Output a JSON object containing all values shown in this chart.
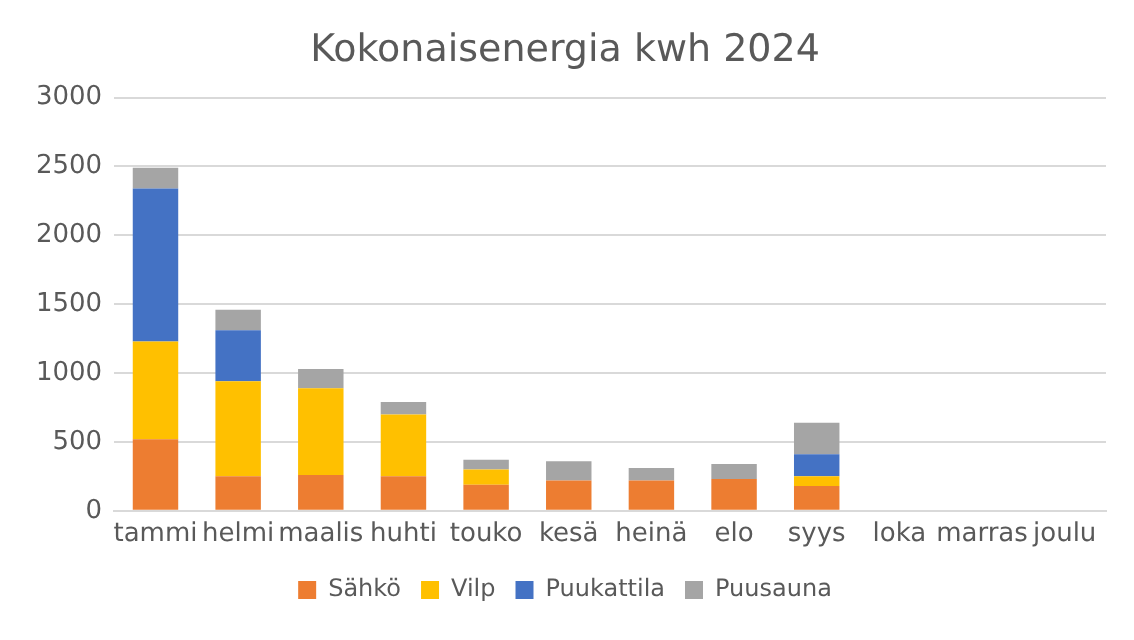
{
  "chart_data": {
    "type": "bar",
    "title": "Kokonaisenergia kwh 2024",
    "stacked": true,
    "categories": [
      "tammi",
      "helmi",
      "maalis",
      "huhti",
      "touko",
      "kesä",
      "heinä",
      "elo",
      "syys",
      "loka",
      "marras",
      "joulu"
    ],
    "series": [
      {
        "name": "Sähkö",
        "color": "#ed7d31",
        "values": [
          520,
          250,
          260,
          250,
          190,
          220,
          220,
          230,
          180,
          null,
          null,
          null
        ]
      },
      {
        "name": "Vilp",
        "color": "#ffc000",
        "values": [
          710,
          690,
          630,
          450,
          110,
          0,
          0,
          0,
          70,
          null,
          null,
          null
        ]
      },
      {
        "name": "Puukattila",
        "color": "#4472c4",
        "values": [
          1110,
          370,
          0,
          0,
          0,
          0,
          0,
          0,
          160,
          null,
          null,
          null
        ]
      },
      {
        "name": "Puusauna",
        "color": "#a5a5a5",
        "values": [
          150,
          150,
          140,
          90,
          70,
          140,
          90,
          110,
          230,
          null,
          null,
          null
        ]
      }
    ],
    "ylim": [
      0,
      3000
    ],
    "yticks": [
      0,
      500,
      1000,
      1500,
      2000,
      2500,
      3000
    ],
    "grid": "y",
    "legend": "bottom"
  }
}
